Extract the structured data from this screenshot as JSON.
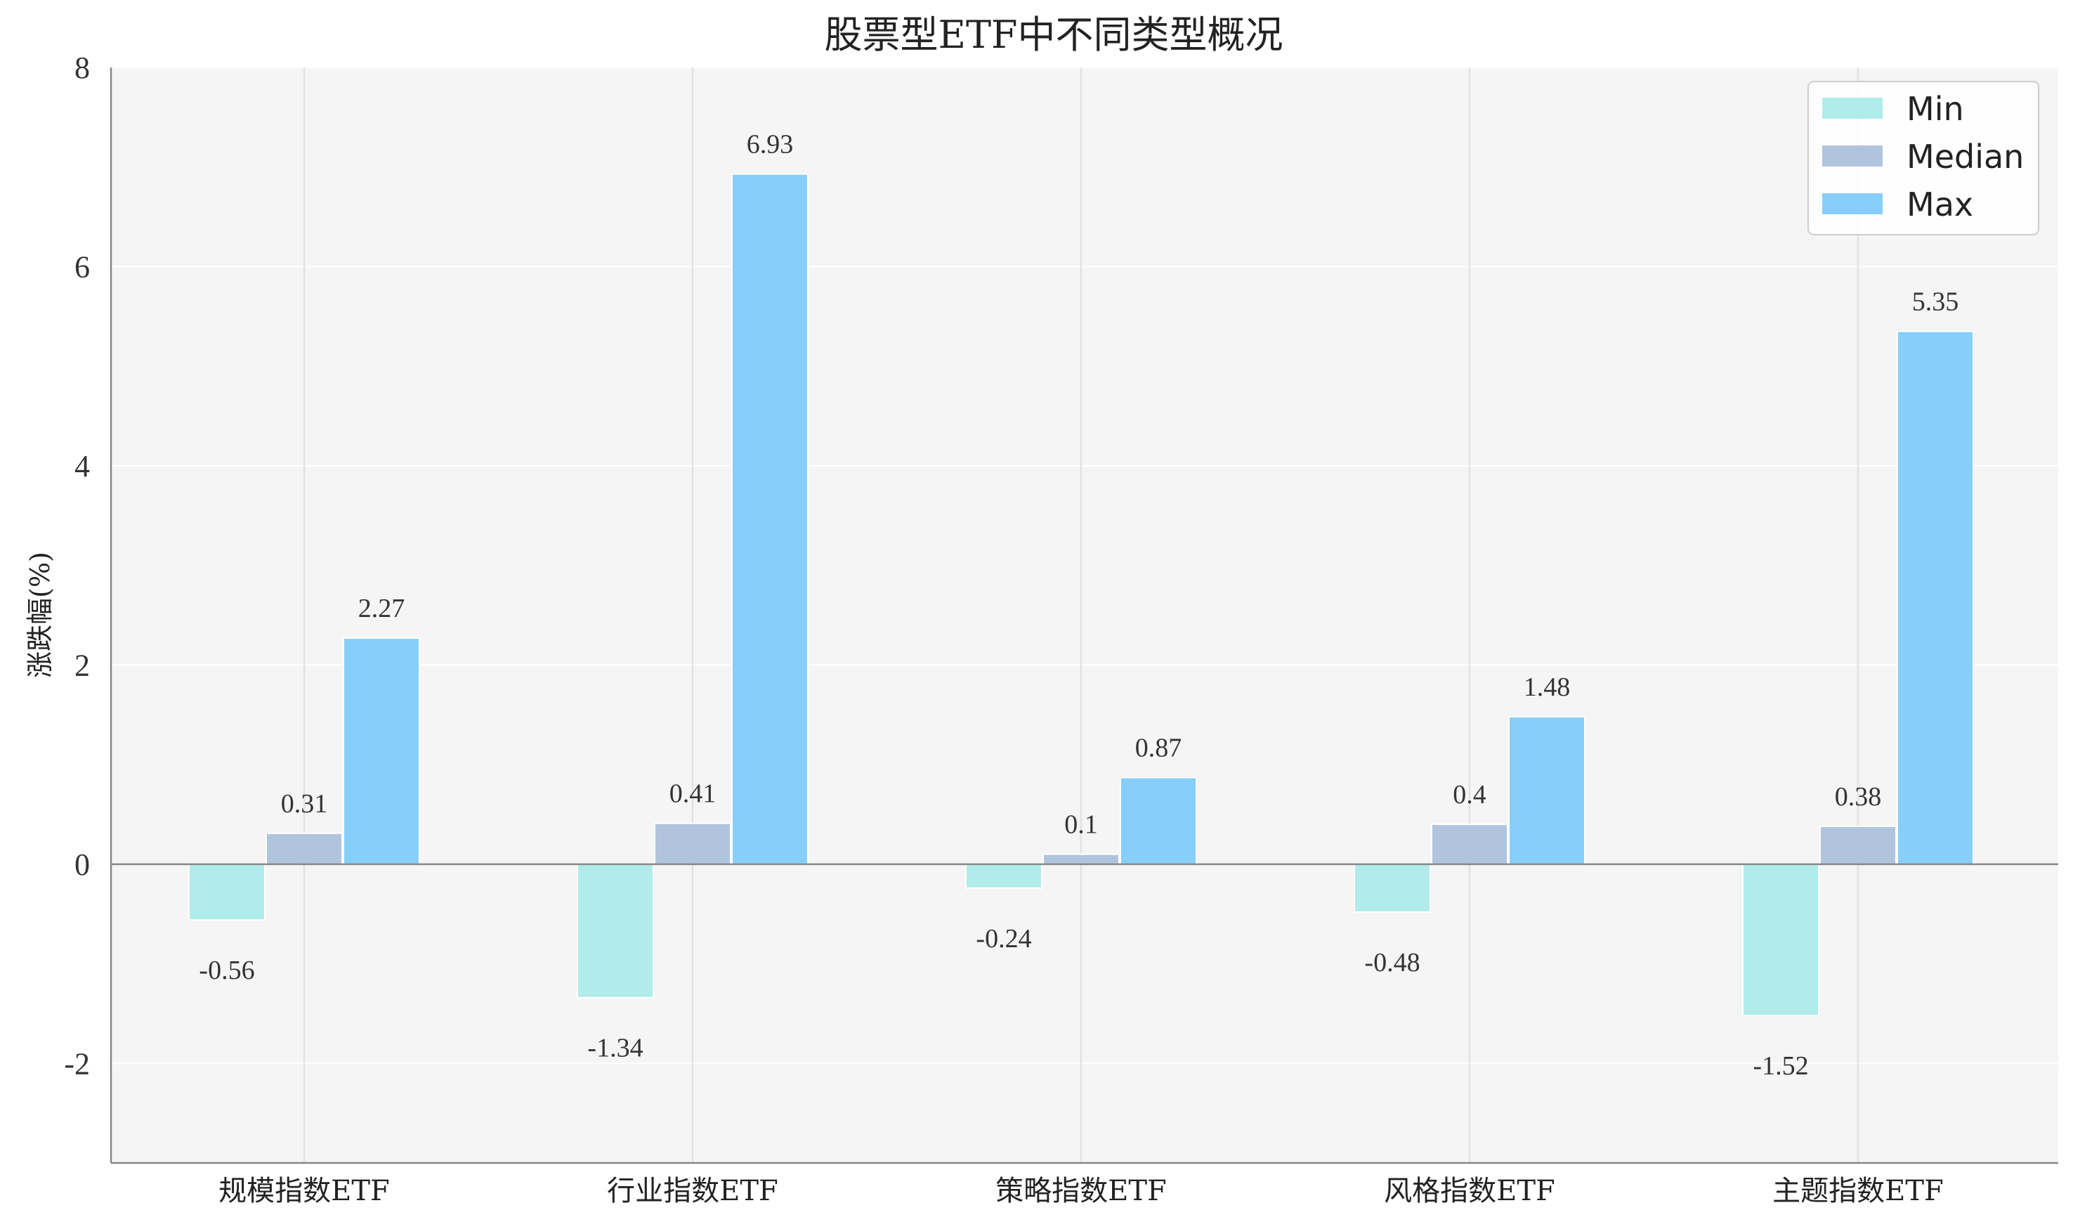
{
  "chart_data": {
    "type": "bar",
    "title": "股票型ETF中不同类型概况",
    "xlabel": "",
    "ylabel": "涨跌幅(%)",
    "categories": [
      "规模指数ETF",
      "行业指数ETF",
      "策略指数ETF",
      "风格指数ETF",
      "主题指数ETF"
    ],
    "series": [
      {
        "name": "Min",
        "color": "#b0ece9",
        "values": [
          -0.56,
          -1.34,
          -0.24,
          -0.48,
          -1.52
        ]
      },
      {
        "name": "Median",
        "color": "#b0c4de",
        "values": [
          0.31,
          0.41,
          0.1,
          0.4,
          0.38
        ]
      },
      {
        "name": "Max",
        "color": "#87cefa",
        "values": [
          2.27,
          6.93,
          0.87,
          1.48,
          5.35
        ]
      }
    ],
    "data_labels": [
      [
        "-0.56",
        "-1.34",
        "-0.24",
        "-0.48",
        "-1.52"
      ],
      [
        "0.31",
        "0.41",
        "0.1",
        "0.4",
        "0.38"
      ],
      [
        "2.27",
        "6.93",
        "0.87",
        "1.48",
        "5.35"
      ]
    ],
    "ylim": [
      -3,
      8
    ],
    "yticks": [
      -2,
      0,
      2,
      4,
      6,
      8
    ],
    "grid": true,
    "legend_position": "top-right",
    "background_color": "#f5f5f5"
  }
}
